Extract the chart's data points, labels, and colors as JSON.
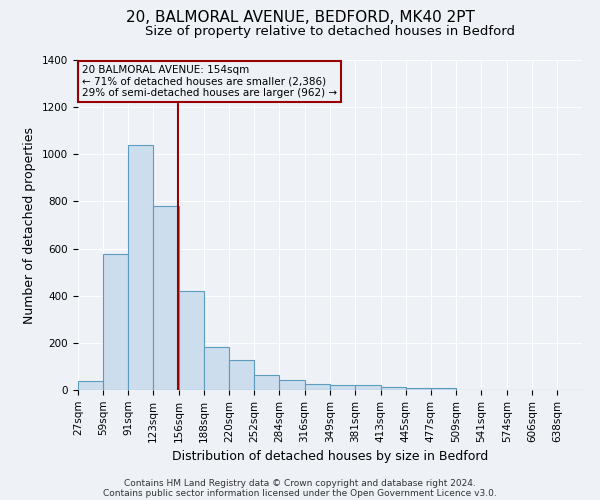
{
  "title_line1": "20, BALMORAL AVENUE, BEDFORD, MK40 2PT",
  "title_line2": "Size of property relative to detached houses in Bedford",
  "xlabel": "Distribution of detached houses by size in Bedford",
  "ylabel": "Number of detached properties",
  "footnote1": "Contains HM Land Registry data © Crown copyright and database right 2024.",
  "footnote2": "Contains public sector information licensed under the Open Government Licence v3.0.",
  "bar_edges": [
    27,
    59,
    91,
    123,
    156,
    188,
    220,
    252,
    284,
    316,
    349,
    381,
    413,
    445,
    477,
    509,
    541,
    574,
    606,
    638,
    670
  ],
  "bar_heights": [
    40,
    575,
    1040,
    780,
    420,
    183,
    126,
    63,
    43,
    26,
    20,
    20,
    12,
    10,
    8,
    0,
    0,
    0,
    0,
    0
  ],
  "bar_color": "#ccdded",
  "bar_edgecolor": "#5b9cbf",
  "subject_value": 154,
  "subject_line_color": "#990000",
  "annotation_box_edgecolor": "#990000",
  "annotation_text_line1": "20 BALMORAL AVENUE: 154sqm",
  "annotation_text_line2": "← 71% of detached houses are smaller (2,386)",
  "annotation_text_line3": "29% of semi-detached houses are larger (962) →",
  "ylim": [
    0,
    1400
  ],
  "yticks": [
    0,
    200,
    400,
    600,
    800,
    1000,
    1200,
    1400
  ],
  "background_color": "#eef2f7",
  "grid_color": "#ffffff",
  "title_fontsize": 11,
  "subtitle_fontsize": 9.5,
  "axis_label_fontsize": 9,
  "tick_fontsize": 7.5,
  "annotation_fontsize": 7.5,
  "footnote_fontsize": 6.5
}
